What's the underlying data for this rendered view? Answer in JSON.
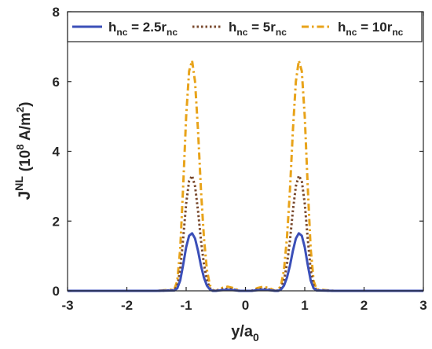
{
  "chart_data": {
    "type": "line",
    "title": "",
    "xlabel": {
      "main": "y/a",
      "sub": "0"
    },
    "ylabel": {
      "main": "J",
      "sup": "NL",
      "unit_open": "(10",
      "unit_exp": "8",
      "unit_mid": " A/m",
      "unit_exp2": "2",
      "unit_close": ")"
    },
    "xlim": [
      -3,
      3
    ],
    "ylim": [
      0,
      8
    ],
    "xticks": [
      -3,
      -2,
      -1,
      0,
      1,
      2,
      3
    ],
    "yticks": [
      0,
      2,
      4,
      6,
      8
    ],
    "xtick_labels": [
      "-3",
      "-2",
      "-1",
      "0",
      "1",
      "2",
      "3"
    ],
    "ytick_labels": [
      "0",
      "2",
      "4",
      "6",
      "8"
    ],
    "grid": false,
    "legend_position": "top-right",
    "legend_orientation": "horizontal",
    "series": [
      {
        "name": {
          "h": "h",
          "hsub": "nc",
          "eq": " = 2.5r",
          "rsub": "nc"
        },
        "color": "#3b4fb8",
        "style": "solid",
        "x": [
          -3,
          -1.5,
          -1.2,
          -1.15,
          -1.1,
          -1.05,
          -1.0,
          -0.95,
          -0.9,
          -0.85,
          -0.8,
          -0.75,
          -0.7,
          -0.65,
          -0.6,
          -0.55,
          -0.5,
          -0.45,
          -0.4,
          -0.3,
          -0.2,
          -0.1,
          0,
          0.1,
          0.2,
          0.3,
          0.4,
          0.45,
          0.5,
          0.55,
          0.6,
          0.65,
          0.7,
          0.75,
          0.8,
          0.85,
          0.9,
          0.95,
          1.0,
          1.05,
          1.1,
          1.15,
          1.2,
          1.5,
          3
        ],
        "y": [
          0,
          0,
          0.01,
          0.07,
          0.3,
          0.75,
          1.25,
          1.58,
          1.65,
          1.5,
          1.15,
          0.72,
          0.38,
          0.15,
          0.04,
          0.0,
          0.0,
          0.01,
          0.02,
          0.03,
          0.02,
          0.0,
          0.0,
          0.0,
          0.02,
          0.03,
          0.02,
          0.01,
          0.0,
          0.0,
          0.04,
          0.15,
          0.38,
          0.72,
          1.15,
          1.5,
          1.65,
          1.58,
          1.25,
          0.75,
          0.3,
          0.07,
          0.01,
          0,
          0
        ]
      },
      {
        "name": {
          "h": "h",
          "hsub": "nc",
          "eq": " = 5r",
          "rsub": "nc"
        },
        "color": "#7a4a2e",
        "style": "dotted",
        "x": [
          -3,
          -1.5,
          -1.2,
          -1.15,
          -1.1,
          -1.05,
          -1.0,
          -0.95,
          -0.9,
          -0.85,
          -0.8,
          -0.75,
          -0.7,
          -0.65,
          -0.6,
          -0.55,
          -0.5,
          -0.45,
          -0.4,
          -0.3,
          -0.2,
          -0.1,
          0,
          0.1,
          0.2,
          0.3,
          0.4,
          0.45,
          0.5,
          0.55,
          0.6,
          0.65,
          0.7,
          0.75,
          0.8,
          0.85,
          0.9,
          0.95,
          1.0,
          1.05,
          1.1,
          1.15,
          1.2,
          1.5,
          3
        ],
        "y": [
          0,
          0,
          0.02,
          0.14,
          0.6,
          1.5,
          2.5,
          3.15,
          3.3,
          3.0,
          2.3,
          1.44,
          0.76,
          0.3,
          0.08,
          0.01,
          0.0,
          0.02,
          0.04,
          0.06,
          0.04,
          0.0,
          0.0,
          0.0,
          0.04,
          0.06,
          0.04,
          0.02,
          0.0,
          0.01,
          0.08,
          0.3,
          0.76,
          1.44,
          2.3,
          3.0,
          3.3,
          3.15,
          2.5,
          1.5,
          0.6,
          0.14,
          0.02,
          0,
          0
        ]
      },
      {
        "name": {
          "h": "h",
          "hsub": "nc",
          "eq": " = 10r",
          "rsub": "nc"
        },
        "color": "#e8a31a",
        "style": "dashdot",
        "x": [
          -3,
          -1.5,
          -1.2,
          -1.15,
          -1.1,
          -1.05,
          -1.0,
          -0.95,
          -0.9,
          -0.85,
          -0.8,
          -0.75,
          -0.7,
          -0.65,
          -0.6,
          -0.55,
          -0.5,
          -0.45,
          -0.4,
          -0.3,
          -0.2,
          -0.1,
          0,
          0.1,
          0.2,
          0.3,
          0.4,
          0.45,
          0.5,
          0.55,
          0.6,
          0.65,
          0.7,
          0.75,
          0.8,
          0.85,
          0.9,
          0.95,
          1.0,
          1.05,
          1.1,
          1.15,
          1.2,
          1.5,
          3
        ],
        "y": [
          0,
          0,
          0.04,
          0.28,
          1.2,
          3.0,
          5.0,
          6.3,
          6.6,
          6.0,
          4.6,
          2.88,
          1.52,
          0.6,
          0.16,
          0.02,
          0.0,
          0.04,
          0.08,
          0.12,
          0.08,
          0.0,
          0.0,
          0.0,
          0.08,
          0.12,
          0.08,
          0.04,
          0.0,
          0.02,
          0.16,
          0.6,
          1.52,
          2.88,
          4.6,
          6.0,
          6.6,
          6.3,
          5.0,
          3.0,
          1.2,
          0.28,
          0.04,
          0,
          0
        ]
      }
    ]
  }
}
